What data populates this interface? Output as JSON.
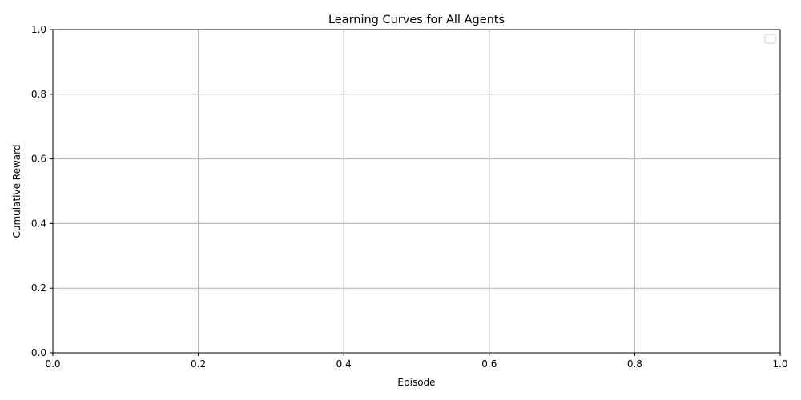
{
  "chart_data": {
    "type": "line",
    "title": "Learning Curves for All Agents",
    "xlabel": "Episode",
    "ylabel": "Cumulative Reward",
    "xlim": [
      0,
      1
    ],
    "ylim": [
      0,
      1
    ],
    "xticks": [
      "0.0",
      "0.2",
      "0.4",
      "0.6",
      "0.8",
      "1.0"
    ],
    "yticks": [
      "0.0",
      "0.2",
      "0.4",
      "0.6",
      "0.8",
      "1.0"
    ],
    "grid": true,
    "legend_position": "top-right",
    "series": [],
    "colors": {
      "grid": "#b0b0b0",
      "axes": "#000000",
      "background": "#ffffff"
    }
  }
}
